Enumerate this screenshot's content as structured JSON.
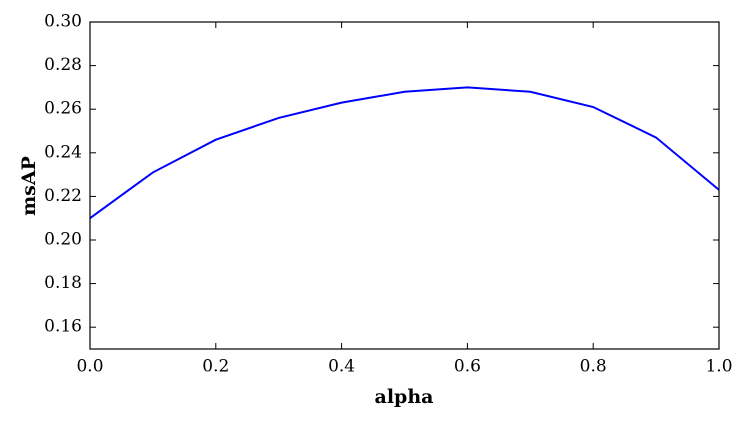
{
  "chart_data": {
    "type": "line",
    "x_label": "alpha",
    "y_label": "msAP",
    "x": [
      0.0,
      0.1,
      0.2,
      0.3,
      0.4,
      0.5,
      0.6,
      0.7,
      0.8,
      0.9,
      1.0
    ],
    "series": [
      {
        "name": "msAP",
        "color": "#0000ff",
        "values": [
          0.21,
          0.231,
          0.246,
          0.256,
          0.263,
          0.268,
          0.27,
          0.268,
          0.261,
          0.247,
          0.223
        ]
      }
    ],
    "xlim": [
      0,
      1
    ],
    "ylim": [
      0.15,
      0.3
    ],
    "xticks": [
      {
        "value": 0,
        "label": "0.0"
      },
      0.2,
      0.4,
      0.6,
      0.8,
      {
        "value": 1,
        "label": "1.0"
      }
    ],
    "yticks": [
      0.16,
      0.18,
      {
        "value": 0.2,
        "label": "0.20"
      },
      0.22,
      0.24,
      0.26,
      0.28,
      {
        "value": 0.3,
        "label": "0.30"
      }
    ]
  }
}
